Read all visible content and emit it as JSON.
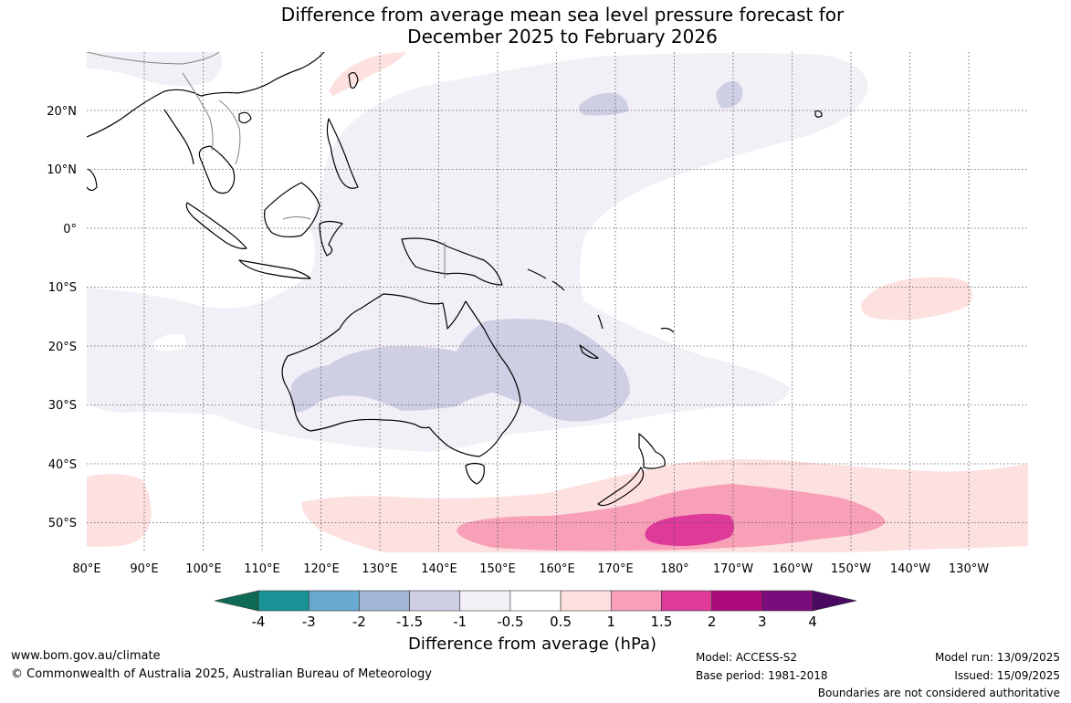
{
  "title": {
    "line1": "Difference from average mean sea level pressure forecast for",
    "line2": "December 2025 to February 2026"
  },
  "map": {
    "lat_labels": [
      "20°N",
      "10°N",
      "0°",
      "10°S",
      "20°S",
      "30°S",
      "40°S",
      "50°S"
    ],
    "lon_labels": [
      "80°E",
      "90°E",
      "100°E",
      "110°E",
      "120°E",
      "130°E",
      "140°E",
      "150°E",
      "160°E",
      "170°E",
      "180°",
      "170°W",
      "160°W",
      "150°W",
      "140°W",
      "130°W"
    ],
    "colors": {
      "land": "#ffffff",
      "coast": "#000000",
      "borders": "#808080",
      "grid": "#555555"
    }
  },
  "colorbar": {
    "labels": [
      "-4",
      "-3",
      "-2",
      "-1.5",
      "-1",
      "-0.5",
      "0.5",
      "1",
      "1.5",
      "2",
      "3",
      "4"
    ],
    "colors": [
      "#0f6b55",
      "#1a9397",
      "#67a9d0",
      "#a3b5d4",
      "#cecfe4",
      "#f3eff6",
      "#ffffff",
      "#fde0e0",
      "#f8a0b8",
      "#dd3a9a",
      "#ad0a7c",
      "#7b0c7c",
      "#4a0a62"
    ],
    "title": "Difference from average (hPa)"
  },
  "footer": {
    "website": "www.bom.gov.au/climate",
    "copyright": "© Commonwealth of Australia 2025, Australian Bureau of Meteorology",
    "model": "Model: ACCESS-S2",
    "base_period": "Base period: 1981-2018",
    "model_run": "Model run: 13/09/2025",
    "issued": "Issued: 15/09/2025",
    "disclaimer": "Boundaries are not considered authoritative"
  }
}
